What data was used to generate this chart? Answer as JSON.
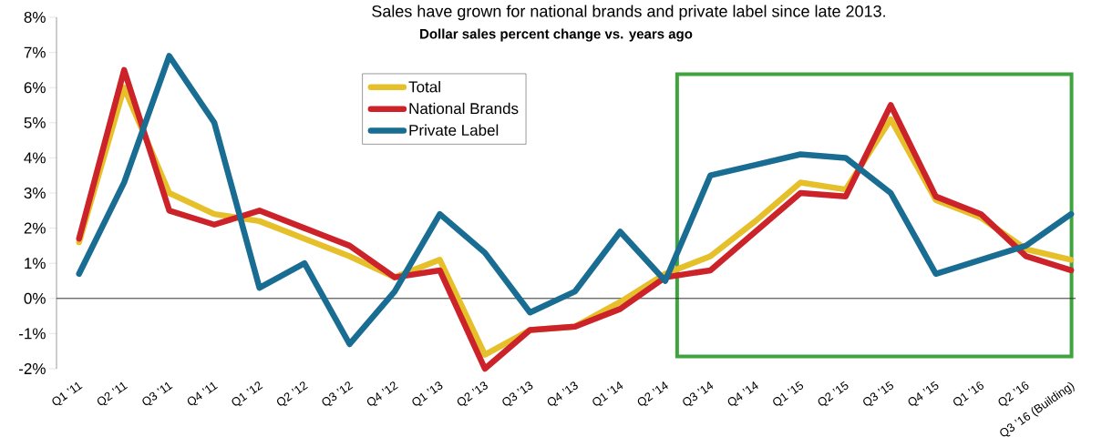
{
  "chart_data": {
    "type": "line",
    "title": "Sales have grown for national brands and private label since late 2013.",
    "subtitle": "Dollar sales percent change vs. years ago",
    "categories": [
      "Q1 ’11",
      "Q2 ’11",
      "Q3 ’11",
      "Q4 ’11",
      "Q1 ’12",
      "Q2 ’12",
      "Q3 ’12",
      "Q4 ’12",
      "Q1 ’13",
      "Q2 ’13",
      "Q3 ’13",
      "Q4 ’13",
      "Q1 ’14",
      "Q2 ’14",
      "Q3 ’14",
      "Q4 ’14",
      "Q1 ’15",
      "Q2 ’15",
      "Q3 ’15",
      "Q4 ’15",
      "Q1 ’16",
      "Q2 ’16",
      "Q3 ’16 (Building)"
    ],
    "series": [
      {
        "name": "Total",
        "color": "#e6c02a",
        "values": [
          1.6,
          6.0,
          3.0,
          2.4,
          2.2,
          1.7,
          1.2,
          0.6,
          1.1,
          -1.6,
          -0.9,
          -0.8,
          -0.1,
          0.7,
          1.2,
          2.2,
          3.3,
          3.1,
          5.1,
          2.8,
          2.3,
          1.4,
          1.1
        ]
      },
      {
        "name": "National Brands",
        "color": "#cc2229",
        "values": [
          1.7,
          6.5,
          2.5,
          2.1,
          2.5,
          2.0,
          1.5,
          0.6,
          0.8,
          -2.0,
          -0.9,
          -0.8,
          -0.3,
          0.6,
          0.8,
          1.9,
          3.0,
          2.9,
          5.5,
          2.9,
          2.4,
          1.2,
          0.8
        ]
      },
      {
        "name": "Private Label",
        "color": "#1a6d92",
        "values": [
          0.7,
          3.3,
          6.9,
          5.0,
          0.3,
          1.0,
          -1.3,
          0.2,
          2.4,
          1.3,
          -0.4,
          0.2,
          1.9,
          0.5,
          3.5,
          3.8,
          4.1,
          4.0,
          3.0,
          0.7,
          1.1,
          1.5,
          2.4
        ]
      }
    ],
    "ylim": [
      -2,
      8
    ],
    "yticks": [
      {
        "value": -2,
        "label": "-2%"
      },
      {
        "value": -1,
        "label": "-1%"
      },
      {
        "value": 0,
        "label": "0%"
      },
      {
        "value": 1,
        "label": "1%"
      },
      {
        "value": 2,
        "label": "2%"
      },
      {
        "value": 3,
        "label": "3%"
      },
      {
        "value": 4,
        "label": "4%"
      },
      {
        "value": 5,
        "label": "5%"
      },
      {
        "value": 6,
        "label": "6%"
      },
      {
        "value": 7,
        "label": "7%"
      },
      {
        "value": 8,
        "label": "8%"
      }
    ],
    "ref_lines": [
      {
        "axis": "y",
        "value": 0,
        "color": "#333333"
      }
    ],
    "grid": false,
    "legend": "top",
    "marker": "none",
    "line_style": "solid"
  }
}
